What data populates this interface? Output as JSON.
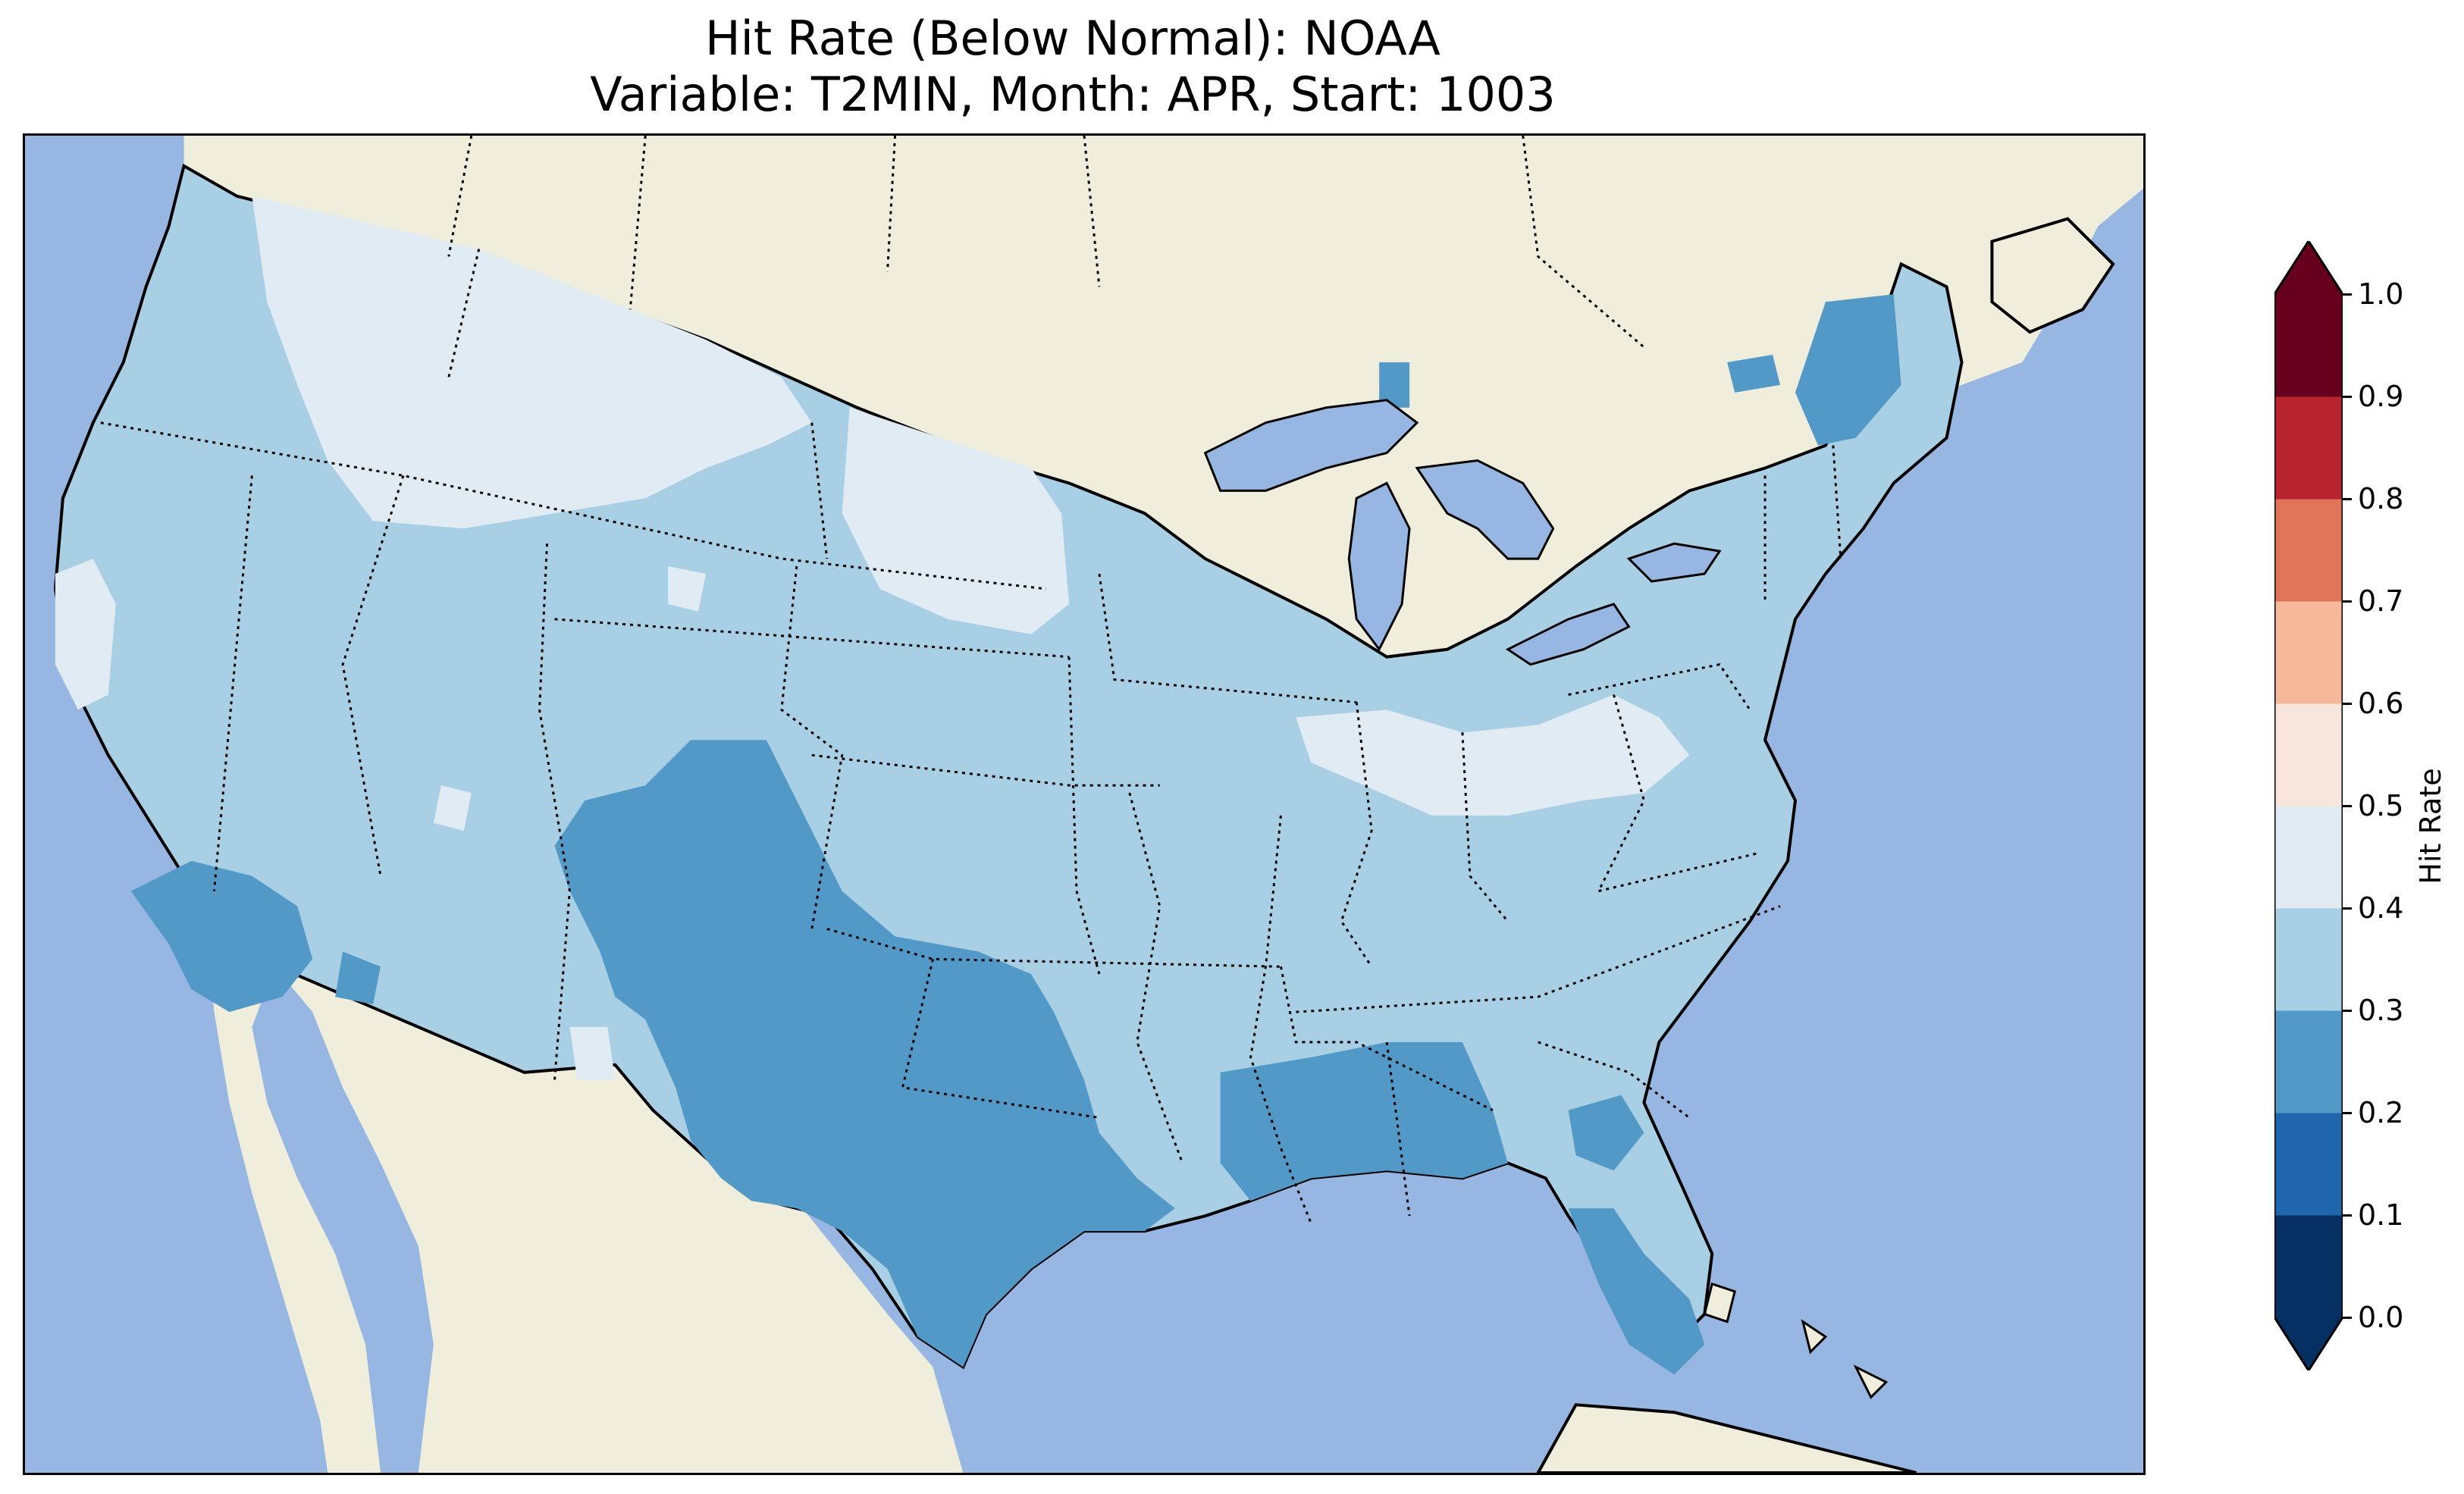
{
  "title": {
    "line1": "Hit Rate (Below Normal): NOAA",
    "line2": "Variable: T2MIN, Month: APR, Start: 1003"
  },
  "map": {
    "projection": "Lambert conformal, contiguous United States with parts of Canada and Mexico",
    "colors": {
      "ocean": "#97b6e1",
      "land": "#efeddb",
      "lakes": "#97b6e1"
    },
    "regions": [
      {
        "name": "Pacific Northwest and Northern Rockies",
        "hit_rate_bin": "0.3-0.4"
      },
      {
        "name": "Montana, Idaho and western Dakotas",
        "hit_rate_bin": "0.4-0.5"
      },
      {
        "name": "Great Plains, Midwest and Northeast",
        "hit_rate_bin": "0.3-0.4"
      },
      {
        "name": "Ohio Valley band",
        "hit_rate_bin": "0.4-0.5"
      },
      {
        "name": "Colorado and New Mexico",
        "hit_rate_bin": "0.2-0.3"
      },
      {
        "name": "Texas and Oklahoma",
        "hit_rate_bin": "0.2-0.3"
      },
      {
        "name": "Southern California",
        "hit_rate_bin": "0.2-0.3"
      },
      {
        "name": "Mississippi, Alabama and Gulf Coast",
        "hit_rate_bin": "0.2-0.3"
      },
      {
        "name": "Florida peninsula",
        "hit_rate_bin": "0.2-0.3"
      },
      {
        "name": "Northern New England",
        "hit_rate_bin": "0.2-0.3"
      }
    ]
  },
  "colorbar": {
    "label": "Hit Rate",
    "ticks": [
      "0.0",
      "0.1",
      "0.2",
      "0.3",
      "0.4",
      "0.5",
      "0.6",
      "0.7",
      "0.8",
      "0.9",
      "1.0"
    ],
    "bins": [
      {
        "range": [
          0.0,
          0.1
        ],
        "color": "#053061"
      },
      {
        "range": [
          0.1,
          0.2
        ],
        "color": "#2166ac"
      },
      {
        "range": [
          0.2,
          0.3
        ],
        "color": "#5299c7"
      },
      {
        "range": [
          0.3,
          0.4
        ],
        "color": "#a8cfe4"
      },
      {
        "range": [
          0.4,
          0.5
        ],
        "color": "#e0ebf3"
      },
      {
        "range": [
          0.5,
          0.6
        ],
        "color": "#f8e5db"
      },
      {
        "range": [
          0.6,
          0.7
        ],
        "color": "#f5b89a"
      },
      {
        "range": [
          0.7,
          0.8
        ],
        "color": "#e07458"
      },
      {
        "range": [
          0.8,
          0.9
        ],
        "color": "#b7232f"
      },
      {
        "range": [
          0.9,
          1.0
        ],
        "color": "#67001f"
      }
    ],
    "extend": "both"
  }
}
